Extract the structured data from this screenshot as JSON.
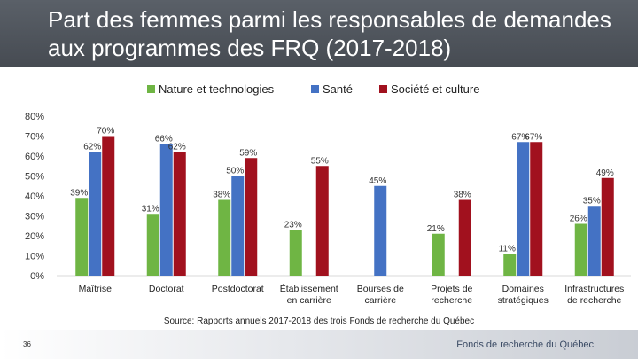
{
  "title": "Part des femmes parmi les responsables de demandes aux programmes des FRQ (2017-2018)",
  "source": "Source: Rapports annuels 2017-2018 des trois Fonds de recherche du Québec",
  "page_number": "36",
  "org_name": "Fonds de recherche du Québec",
  "colors": {
    "title_band": "#4e545b",
    "green": "#6fb544",
    "blue": "#4472c4",
    "red": "#a1111e"
  },
  "chart_data": {
    "type": "bar",
    "title": "Part des femmes parmi les responsables de demandes aux programmes des FRQ (2017-2018)",
    "xlabel": "",
    "ylabel": "",
    "ylim": [
      0,
      80
    ],
    "yticks": [
      "0%",
      "10%",
      "20%",
      "30%",
      "40%",
      "50%",
      "60%",
      "70%",
      "80%"
    ],
    "grid": false,
    "legend_position": "top",
    "categories": [
      "Maîtrise",
      "Doctorat",
      "Postdoctorat",
      "Établissement en carrière",
      "Bourses de carrière",
      "Projets de recherche",
      "Domaines stratégiques",
      "Infrastructures de recherche"
    ],
    "series": [
      {
        "name": "Nature et technologies",
        "color": "#6fb544",
        "values": [
          39,
          31,
          38,
          23,
          null,
          21,
          11,
          26
        ]
      },
      {
        "name": "Santé",
        "color": "#4472c4",
        "values": [
          62,
          66,
          50,
          null,
          45,
          null,
          67,
          35
        ]
      },
      {
        "name": "Société et culture",
        "color": "#a1111e",
        "values": [
          70,
          62,
          59,
          55,
          null,
          38,
          67,
          49
        ]
      }
    ]
  }
}
